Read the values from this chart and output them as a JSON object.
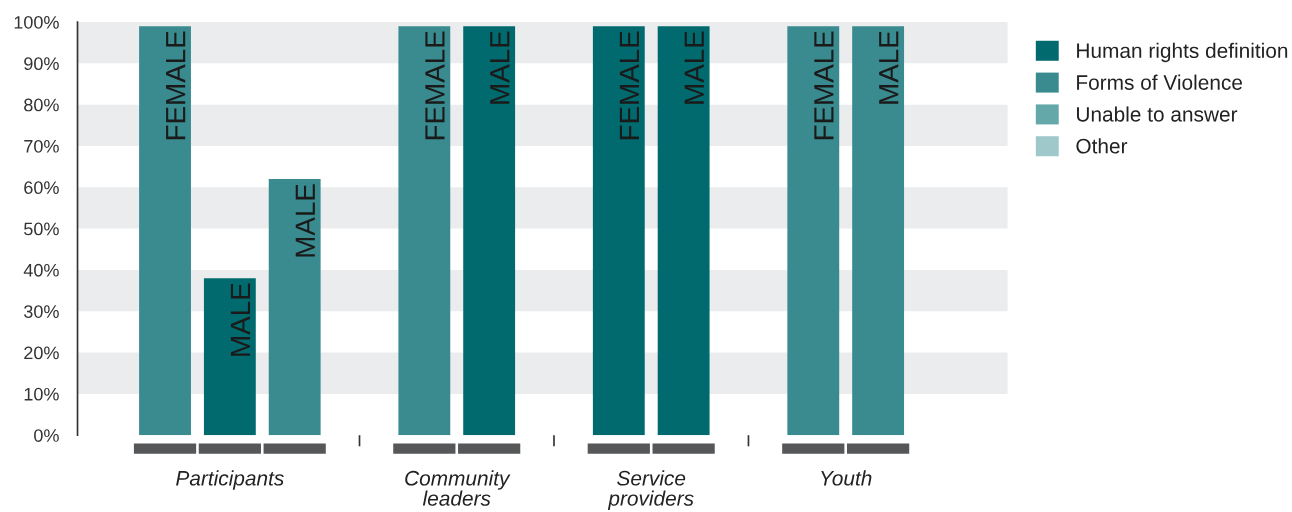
{
  "chart_data": {
    "type": "bar",
    "categories": [
      "FEMALE",
      "MALE",
      "MALE",
      null,
      "FEMALE",
      "MALE",
      null,
      "FEMALE",
      "MALE",
      null,
      "FEMALE",
      "MALE"
    ],
    "series": [
      {
        "name": "Human rights definition",
        "color": "#006a6e",
        "values": [
          null,
          38,
          null,
          null,
          null,
          99,
          null,
          99,
          99,
          null,
          null,
          null
        ]
      },
      {
        "name": "Forms of Violence",
        "color": "#3a8b8f",
        "values": [
          99,
          null,
          62,
          null,
          99,
          null,
          null,
          null,
          null,
          null,
          99,
          99
        ]
      },
      {
        "name": "Unable to answer",
        "color": "#64a8aa",
        "values": [
          null,
          null,
          null,
          null,
          null,
          null,
          null,
          null,
          null,
          null,
          null,
          null
        ]
      },
      {
        "name": "Other",
        "color": "#9ec8ca",
        "values": [
          null,
          null,
          null,
          null,
          null,
          null,
          null,
          null,
          null,
          null,
          null,
          null
        ]
      }
    ],
    "annotations": [
      "Participants",
      "Community leaders",
      "Service providers",
      "Youth"
    ],
    "ylim": [
      0,
      100
    ],
    "yticks": [
      {
        "value": 0,
        "label": "0%"
      },
      {
        "value": 10,
        "label": "10%"
      },
      {
        "value": 20,
        "label": "20%"
      },
      {
        "value": 30,
        "label": "30%"
      },
      {
        "value": 40,
        "label": "40%"
      },
      {
        "value": 50,
        "label": "50%"
      },
      {
        "value": 60,
        "label": "60%"
      },
      {
        "value": 70,
        "label": "70%"
      },
      {
        "value": 80,
        "label": "80%"
      },
      {
        "value": 90,
        "label": "90%"
      },
      {
        "value": 100,
        "label": "100%"
      }
    ],
    "bands": [
      {
        "axis": "y",
        "from": 10,
        "to": 20,
        "color": "#ebecee"
      },
      {
        "axis": "y",
        "from": 30,
        "to": 40,
        "color": "#ebecee"
      },
      {
        "axis": "y",
        "from": 50,
        "to": 60,
        "color": "#ebecee"
      },
      {
        "axis": "y",
        "from": 70,
        "to": 80,
        "color": "#ebecee"
      },
      {
        "axis": "y",
        "from": 90,
        "to": 100,
        "color": "#ebecee"
      }
    ],
    "grid": false,
    "legend": "top right"
  }
}
